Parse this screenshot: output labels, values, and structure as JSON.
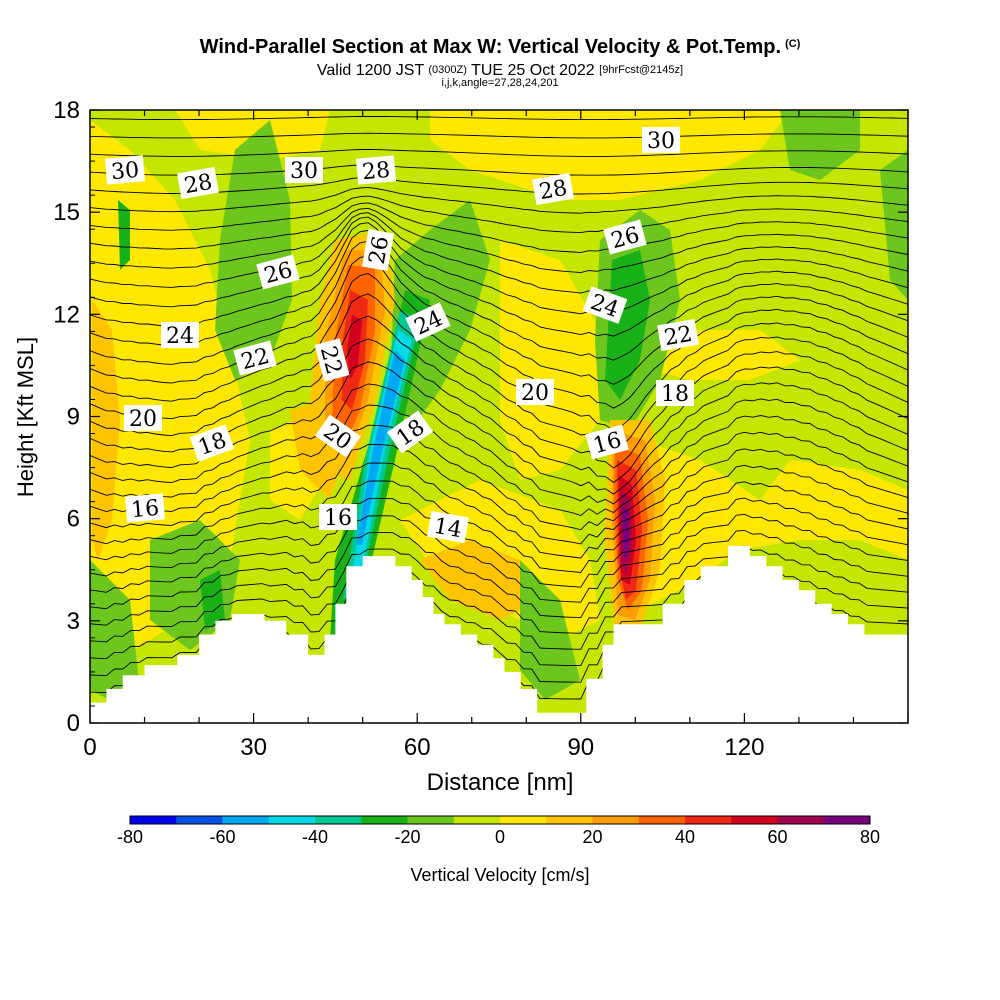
{
  "title": "Wind-Parallel Section at Max W: Vertical Velocity & Pot.Temp.",
  "title_mark": "(C)",
  "subtitle": {
    "prefix": "Valid 1200 JST",
    "utc": "(0300Z)",
    "date": "TUE 25 Oct 2022",
    "fcst": "[9hrFcst@2145z]"
  },
  "subtitle2": "i,j,k,angle=27,28,24,201",
  "chart_data": {
    "type": "heatmap",
    "xlabel": "Distance [nm]",
    "ylabel": "Height [Kft MSL]",
    "xlim": [
      0,
      150
    ],
    "ylim": [
      0,
      18
    ],
    "xticks": [
      "0",
      "30",
      "60",
      "90",
      "120"
    ],
    "yticks": [
      "0",
      "3",
      "6",
      "9",
      "12",
      "15",
      "18"
    ],
    "colorbar": {
      "label": "Vertical Velocity [cm/s]",
      "ticks": [
        "-80",
        "-60",
        "-40",
        "-20",
        "0",
        "20",
        "40",
        "60",
        "80"
      ],
      "range": [
        -80,
        80
      ],
      "colors": [
        "#0000f0",
        "#0050e6",
        "#00a8f4",
        "#00d9e6",
        "#00c893",
        "#18b218",
        "#6cc61e",
        "#c4e600",
        "#ffe800",
        "#ffc400",
        "#ff9c00",
        "#ff6400",
        "#f02814",
        "#d2001e",
        "#a00050",
        "#780080"
      ]
    },
    "theta_contours": {
      "units": "C",
      "labeled_values": [
        "30",
        "28",
        "30",
        "28",
        "26",
        "24",
        "22",
        "18",
        "20",
        "16",
        "26",
        "22",
        "20",
        "18",
        "16",
        "24",
        "14",
        "28",
        "30",
        "26",
        "24",
        "22",
        "20",
        "18",
        "16"
      ]
    },
    "terrain_kft": [
      [
        0,
        0.6
      ],
      [
        3,
        0.6
      ],
      [
        3,
        1.0
      ],
      [
        6,
        1.0
      ],
      [
        6,
        1.4
      ],
      [
        10,
        1.4
      ],
      [
        10,
        1.7
      ],
      [
        16,
        1.7
      ],
      [
        16,
        2.0
      ],
      [
        20,
        2.0
      ],
      [
        20,
        2.6
      ],
      [
        23,
        2.6
      ],
      [
        23,
        3.0
      ],
      [
        26,
        3.0
      ],
      [
        26,
        3.2
      ],
      [
        32,
        3.2
      ],
      [
        32,
        3.0
      ],
      [
        36,
        3.0
      ],
      [
        36,
        2.6
      ],
      [
        40,
        2.6
      ],
      [
        40,
        2.0
      ],
      [
        43,
        2.0
      ],
      [
        43,
        2.6
      ],
      [
        45,
        2.6
      ],
      [
        45,
        3.5
      ],
      [
        47,
        3.5
      ],
      [
        47,
        4.6
      ],
      [
        50,
        4.6
      ],
      [
        50,
        4.9
      ],
      [
        56,
        4.9
      ],
      [
        56,
        4.6
      ],
      [
        59,
        4.6
      ],
      [
        59,
        4.2
      ],
      [
        61,
        4.2
      ],
      [
        61,
        3.7
      ],
      [
        63,
        3.7
      ],
      [
        63,
        3.2
      ],
      [
        65,
        3.2
      ],
      [
        65,
        2.9
      ],
      [
        68,
        2.9
      ],
      [
        68,
        2.6
      ],
      [
        71,
        2.6
      ],
      [
        71,
        2.3
      ],
      [
        74,
        2.3
      ],
      [
        74,
        1.9
      ],
      [
        76,
        1.9
      ],
      [
        76,
        1.5
      ],
      [
        79,
        1.5
      ],
      [
        79,
        1.0
      ],
      [
        82,
        1.0
      ],
      [
        82,
        0.3
      ],
      [
        91,
        0.3
      ],
      [
        91,
        1.3
      ],
      [
        94,
        1.3
      ],
      [
        94,
        2.3
      ],
      [
        96,
        2.3
      ],
      [
        96,
        2.9
      ],
      [
        105,
        2.9
      ],
      [
        105,
        3.5
      ],
      [
        109,
        3.5
      ],
      [
        109,
        4.2
      ],
      [
        112,
        4.2
      ],
      [
        112,
        4.6
      ],
      [
        117,
        4.6
      ],
      [
        117,
        5.2
      ],
      [
        121,
        5.2
      ],
      [
        121,
        4.9
      ],
      [
        124,
        4.9
      ],
      [
        124,
        4.6
      ],
      [
        127,
        4.6
      ],
      [
        127,
        4.2
      ],
      [
        130,
        4.2
      ],
      [
        130,
        3.9
      ],
      [
        133,
        3.9
      ],
      [
        133,
        3.5
      ],
      [
        136,
        3.5
      ],
      [
        136,
        3.2
      ],
      [
        139,
        3.2
      ],
      [
        139,
        2.9
      ],
      [
        142,
        2.9
      ],
      [
        142,
        2.6
      ],
      [
        150,
        2.6
      ]
    ]
  }
}
